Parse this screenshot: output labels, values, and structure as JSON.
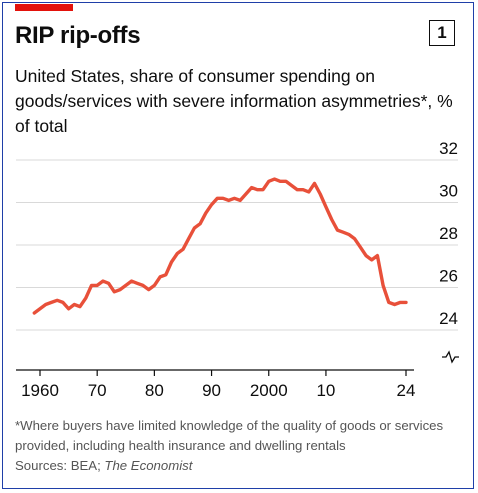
{
  "header": {
    "title": "RIP rip-offs",
    "chart_number": "1",
    "subtitle": "United States, share of consumer spending on goods/services with severe information asymmetries*, % of total"
  },
  "footnote": {
    "note": "*Where buyers have limited knowledge of the quality of goods or services provided, including health insurance and dwelling rentals",
    "sources_prefix": "Sources: BEA; ",
    "sources_italic": "The Economist"
  },
  "colors": {
    "line": "#e8503a",
    "brand_red": "#e3120b",
    "grid": "#d9d9d9",
    "axis": "#0d0d0d"
  },
  "chart_data": {
    "type": "line",
    "title": "RIP rip-offs",
    "xlabel": "",
    "ylabel": "",
    "xlim": [
      1960,
      2024
    ],
    "ylim": [
      23.5,
      32.5
    ],
    "grid": true,
    "y_axis_side": "right",
    "y_axis_break": true,
    "y_ticks": [
      24,
      26,
      28,
      30,
      32
    ],
    "x_ticks": [
      {
        "value": 1960,
        "label": "1960"
      },
      {
        "value": 1970,
        "label": "70"
      },
      {
        "value": 1980,
        "label": "80"
      },
      {
        "value": 1990,
        "label": "90"
      },
      {
        "value": 2000,
        "label": "2000"
      },
      {
        "value": 2010,
        "label": "10"
      },
      {
        "value": 2024,
        "label": "24"
      }
    ],
    "series": [
      {
        "name": "",
        "x": [
          1959,
          1960,
          1961,
          1962,
          1963,
          1964,
          1965,
          1966,
          1967,
          1968,
          1969,
          1970,
          1971,
          1972,
          1973,
          1974,
          1975,
          1976,
          1977,
          1978,
          1979,
          1980,
          1981,
          1982,
          1983,
          1984,
          1985,
          1986,
          1987,
          1988,
          1989,
          1990,
          1991,
          1992,
          1993,
          1994,
          1995,
          1996,
          1997,
          1998,
          1999,
          2000,
          2001,
          2002,
          2003,
          2004,
          2005,
          2006,
          2007,
          2008,
          2009,
          2010,
          2011,
          2012,
          2013,
          2014,
          2015,
          2016,
          2017,
          2018,
          2019,
          2020,
          2021,
          2022,
          2023,
          2024
        ],
        "y": [
          24.8,
          25.0,
          25.2,
          25.3,
          25.4,
          25.3,
          25.0,
          25.2,
          25.1,
          25.5,
          26.1,
          26.1,
          26.3,
          26.2,
          25.8,
          25.9,
          26.1,
          26.3,
          26.2,
          26.1,
          25.9,
          26.1,
          26.5,
          26.6,
          27.2,
          27.6,
          27.8,
          28.3,
          28.8,
          29.0,
          29.5,
          29.9,
          30.2,
          30.2,
          30.1,
          30.2,
          30.1,
          30.4,
          30.7,
          30.6,
          30.6,
          31.0,
          31.1,
          31.0,
          31.0,
          30.8,
          30.6,
          30.6,
          30.5,
          30.9,
          30.4,
          29.8,
          29.2,
          28.7,
          28.6,
          28.5,
          28.3,
          27.9,
          27.5,
          27.3,
          27.5,
          26.1,
          25.3,
          25.2,
          25.3,
          25.3
        ]
      }
    ]
  }
}
